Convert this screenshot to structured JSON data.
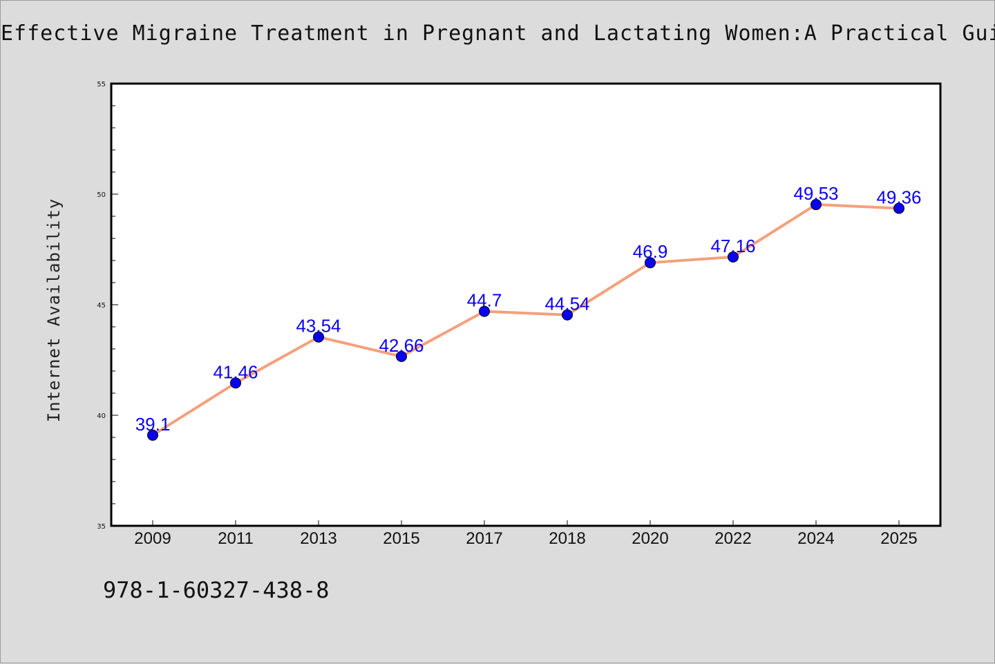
{
  "chart_data": {
    "type": "line",
    "title": "Effective Migraine Treatment in Pregnant and Lactating Women:A Practical Guide",
    "xlabel": "",
    "ylabel": "Internet Availability",
    "categories": [
      "2009",
      "2011",
      "2013",
      "2015",
      "2017",
      "2018",
      "2020",
      "2022",
      "2024",
      "2025"
    ],
    "series": [
      {
        "values": [
          39.1,
          41.46,
          43.54,
          42.66,
          44.7,
          44.54,
          46.9,
          47.16,
          49.53,
          49.36
        ]
      }
    ],
    "data_labels": [
      "39.1",
      "41.46",
      "43.54",
      "42.66",
      "44.7",
      "44.54",
      "46.9",
      "47.16",
      "49.53",
      "49.36"
    ],
    "ylim": [
      35,
      55
    ],
    "y_ticks": [
      "35",
      "40",
      "45",
      "50",
      "55"
    ],
    "grid": false,
    "legend": "none",
    "colors": {
      "line": "#f4a07c",
      "marker": "#0a00f0",
      "label": "#0a00f0",
      "plot_bg": "#ffffff",
      "page_bg": "#dcdcdc"
    }
  },
  "footer": {
    "text": "978-1-60327-438-8"
  }
}
